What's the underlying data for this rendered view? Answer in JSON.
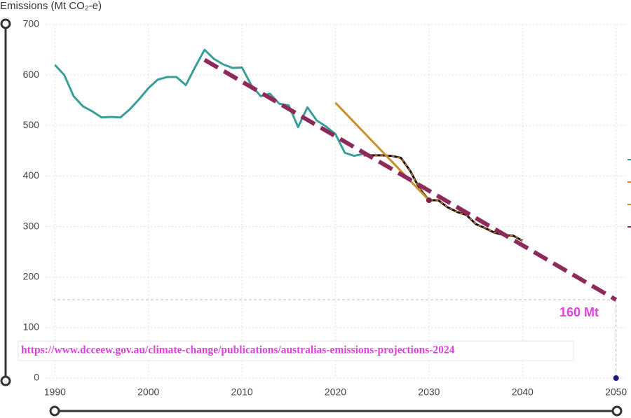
{
  "chart_data": {
    "type": "line",
    "y_label": "Emissions (Mt CO₂-e)",
    "xlim": [
      1989,
      2051
    ],
    "xticks": [
      1990,
      2000,
      2010,
      2020,
      2030,
      2040,
      2050
    ],
    "ylim": [
      0,
      700
    ],
    "yticks": [
      0,
      100,
      200,
      300,
      400,
      500,
      600,
      700
    ],
    "grid": true,
    "series": [
      {
        "color": "#3a9e98",
        "style": "solid",
        "x": [
          1990,
          1991,
          1992,
          1993,
          1994,
          1995,
          1996,
          1997,
          1998,
          1999,
          2000,
          2001,
          2002,
          2003,
          2004,
          2005,
          2006,
          2007,
          2008,
          2009,
          2010,
          2011,
          2012,
          2013,
          2014,
          2015,
          2016,
          2017,
          2018,
          2019,
          2020,
          2021,
          2022,
          2023
        ],
        "values": [
          620,
          600,
          558,
          538,
          528,
          516,
          517,
          516,
          532,
          552,
          574,
          591,
          596,
          596,
          580,
          616,
          650,
          632,
          621,
          614,
          615,
          580,
          558,
          563,
          543,
          540,
          497,
          536,
          510,
          498,
          483,
          446,
          440,
          444
        ]
      },
      {
        "color": "#111111",
        "dash_color": "#f08030",
        "style": "solid",
        "x": [
          2023,
          2024,
          2025,
          2026,
          2027,
          2028,
          2029,
          2030,
          2031,
          2032,
          2033,
          2034,
          2035,
          2036,
          2037,
          2038,
          2039,
          2040
        ],
        "values": [
          441,
          441,
          441,
          440,
          436,
          410,
          375,
          352,
          352,
          338,
          329,
          323,
          305,
          297,
          288,
          283,
          282,
          272
        ]
      },
      {
        "color": "#c8902a",
        "style": "solid",
        "x": [
          2020,
          2030
        ],
        "values": [
          545,
          352
        ]
      },
      {
        "color": "#8e2a5a",
        "style": "dashed",
        "x": [
          2006,
          2050
        ],
        "values": [
          630,
          155
        ]
      }
    ],
    "points": [
      {
        "x": 2030,
        "y": 352,
        "color": "#7a2048"
      },
      {
        "x": 2050,
        "y": 0,
        "color": "#1a1a7a"
      }
    ],
    "reference": {
      "x": 2050,
      "y": 155
    },
    "annotation": "160 Mt",
    "source": "https://www.dcceew.gov.au/climate-change/publications/australias-emissions-projections-2024"
  }
}
